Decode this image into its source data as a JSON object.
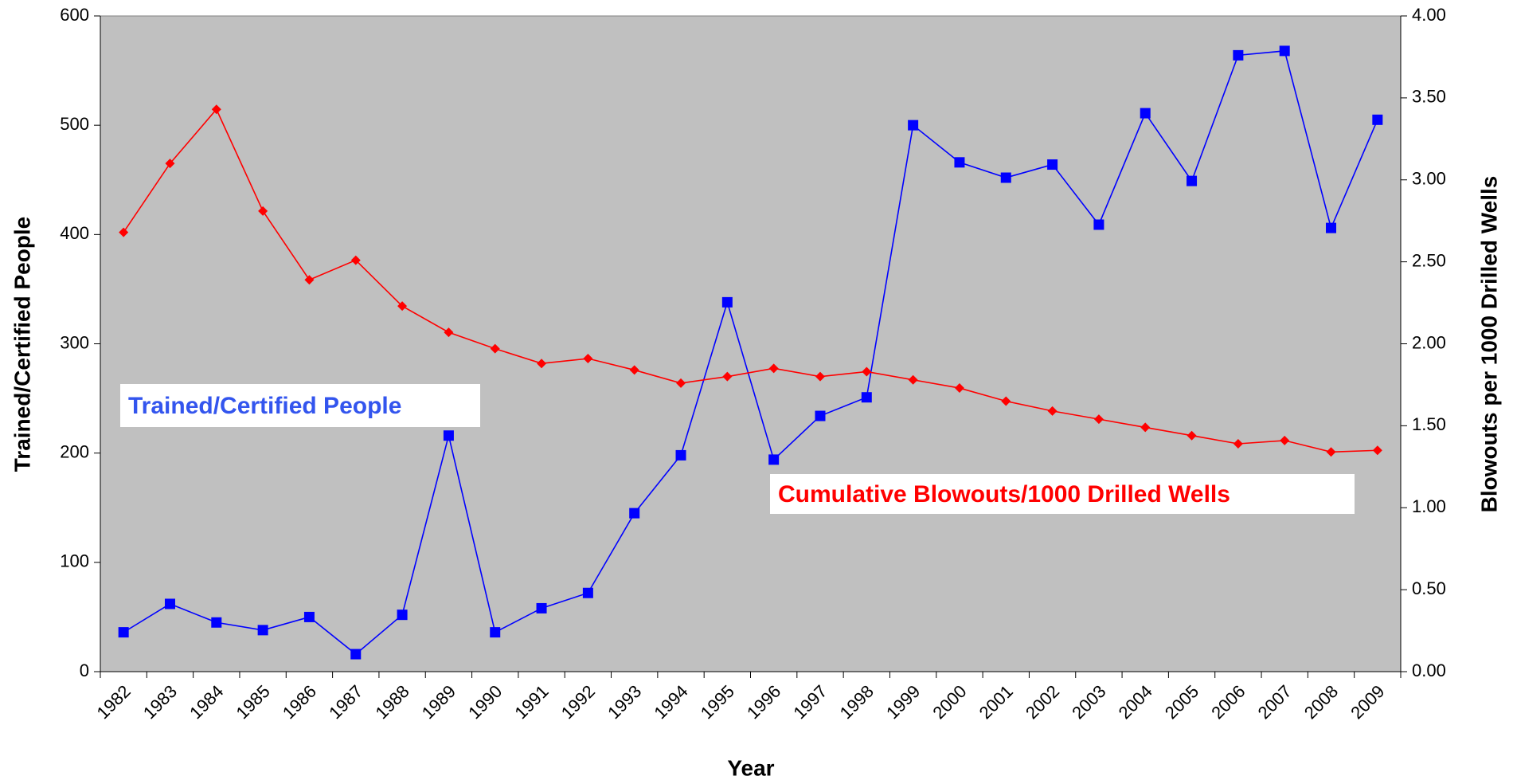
{
  "chart_data": {
    "type": "line",
    "x_label": "Year",
    "y_label": "Trained/Certified People",
    "y2_label": "Blowouts per 1000 Drilled Wells",
    "categories": [
      "1982",
      "1983",
      "1984",
      "1985",
      "1986",
      "1987",
      "1988",
      "1989",
      "1990",
      "1991",
      "1992",
      "1993",
      "1994",
      "1995",
      "1996",
      "1997",
      "1998",
      "1999",
      "2000",
      "2001",
      "2002",
      "2003",
      "2004",
      "2005",
      "2006",
      "2007",
      "2008",
      "2009"
    ],
    "series": [
      {
        "name": "Trained/Certified People",
        "color": "#0000ff",
        "marker": "square",
        "values": [
          36,
          62,
          45,
          38,
          50,
          16,
          52,
          216,
          36,
          58,
          72,
          145,
          198,
          338,
          194,
          234,
          251,
          500,
          466,
          452,
          464,
          409,
          511,
          449,
          564,
          568,
          406,
          505
        ]
      },
      {
        "name": "Cumulative Blowouts/1000 Drilled Wells",
        "color": "#ff0000",
        "marker": "diamond",
        "axis": "y2",
        "values": [
          2.68,
          3.1,
          3.43,
          2.81,
          2.39,
          2.51,
          2.23,
          2.07,
          1.97,
          1.88,
          1.91,
          1.84,
          1.76,
          1.8,
          1.85,
          1.8,
          1.83,
          1.78,
          1.73,
          1.65,
          1.59,
          1.54,
          1.49,
          1.44,
          1.39,
          1.41,
          1.34,
          1.35
        ]
      }
    ],
    "ylim": [
      0,
      600
    ],
    "yticks": [
      0,
      100,
      200,
      300,
      400,
      500,
      600
    ],
    "y2lim": [
      0,
      4
    ],
    "y2ticks": [
      {
        "value": 0,
        "label": "0.00"
      },
      {
        "value": 0.5,
        "label": "0.50"
      },
      {
        "value": 1,
        "label": "1.00"
      },
      {
        "value": 1.5,
        "label": "1.50"
      },
      {
        "value": 2,
        "label": "2.00"
      },
      {
        "value": 2.5,
        "label": "2.50"
      },
      {
        "value": 3,
        "label": "3.00"
      },
      {
        "value": 3.5,
        "label": "3.50"
      },
      {
        "value": 4,
        "label": "4.00"
      }
    ],
    "plot_background": "#c0c0c0"
  }
}
